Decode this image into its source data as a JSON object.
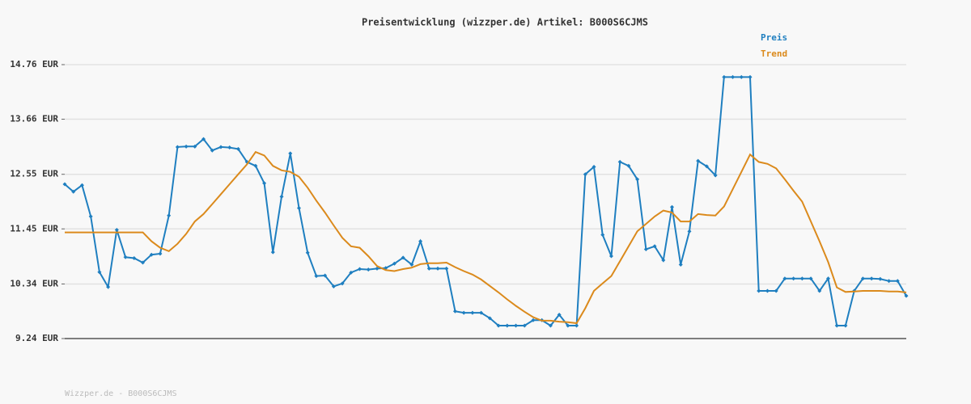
{
  "chart_data": {
    "type": "line",
    "title": "Preisentwicklung (wizzper.de) Artikel: B000S6CJMS",
    "footer": "Wizzper.de - B000S6CJMS",
    "ylim": [
      9.24,
      14.76
    ],
    "yticks": [
      {
        "value": 9.24,
        "label": "9.24 EUR"
      },
      {
        "value": 10.34,
        "label": "10.34 EUR"
      },
      {
        "value": 11.45,
        "label": "11.45 EUR"
      },
      {
        "value": 12.55,
        "label": "12.55 EUR"
      },
      {
        "value": 13.66,
        "label": "13.66 EUR"
      },
      {
        "value": 14.76,
        "label": "14.76 EUR"
      }
    ],
    "grid": true,
    "legend": "top-right",
    "series": [
      {
        "name": "Preis",
        "color": "#1f7fc0",
        "markers": true,
        "values": [
          12.35,
          12.2,
          12.33,
          11.7,
          10.58,
          10.28,
          11.43,
          10.88,
          10.86,
          10.77,
          10.93,
          10.95,
          11.72,
          13.1,
          13.11,
          13.11,
          13.26,
          13.03,
          13.1,
          13.09,
          13.06,
          12.8,
          12.72,
          12.37,
          10.98,
          12.1,
          12.97,
          11.87,
          10.97,
          10.5,
          10.51,
          10.29,
          10.35,
          10.57,
          10.64,
          10.63,
          10.65,
          10.66,
          10.75,
          10.87,
          10.73,
          11.2,
          10.65,
          10.65,
          10.65,
          9.79,
          9.76,
          9.76,
          9.76,
          9.65,
          9.5,
          9.5,
          9.5,
          9.5,
          9.61,
          9.61,
          9.5,
          9.72,
          9.5,
          9.5,
          12.55,
          12.7,
          11.33,
          10.9,
          12.8,
          12.72,
          12.45,
          11.04,
          11.1,
          10.82,
          11.89,
          10.73,
          11.4,
          12.82,
          12.71,
          12.53,
          14.51,
          14.51,
          14.51,
          14.51,
          10.2,
          10.2,
          10.2,
          10.45,
          10.45,
          10.45,
          10.45,
          10.2,
          10.45,
          9.5,
          9.5,
          10.2,
          10.45,
          10.45,
          10.44,
          10.4,
          10.4,
          10.1
        ]
      },
      {
        "name": "Trend",
        "color": "#db8a1c",
        "markers": false,
        "values": [
          11.38,
          11.38,
          11.38,
          11.38,
          11.38,
          11.38,
          11.38,
          11.38,
          11.38,
          11.38,
          11.2,
          11.07,
          11.0,
          11.15,
          11.35,
          11.6,
          11.75,
          11.95,
          12.15,
          12.35,
          12.55,
          12.75,
          13.0,
          12.93,
          12.72,
          12.63,
          12.6,
          12.5,
          12.28,
          12.02,
          11.78,
          11.52,
          11.27,
          11.1,
          11.07,
          10.9,
          10.7,
          10.62,
          10.6,
          10.64,
          10.67,
          10.74,
          10.76,
          10.76,
          10.77,
          10.68,
          10.6,
          10.53,
          10.43,
          10.3,
          10.17,
          10.03,
          9.9,
          9.78,
          9.67,
          9.6,
          9.6,
          9.58,
          9.57,
          9.55,
          9.85,
          10.2,
          10.35,
          10.5,
          10.8,
          11.1,
          11.4,
          11.55,
          11.7,
          11.82,
          11.78,
          11.6,
          11.6,
          11.75,
          11.73,
          11.72,
          11.9,
          12.25,
          12.6,
          12.95,
          12.8,
          12.76,
          12.67,
          12.45,
          12.22,
          12.0,
          11.6,
          11.2,
          10.78,
          10.27,
          10.18,
          10.19,
          10.2,
          10.2,
          10.2,
          10.19,
          10.19,
          10.17
        ]
      }
    ]
  }
}
